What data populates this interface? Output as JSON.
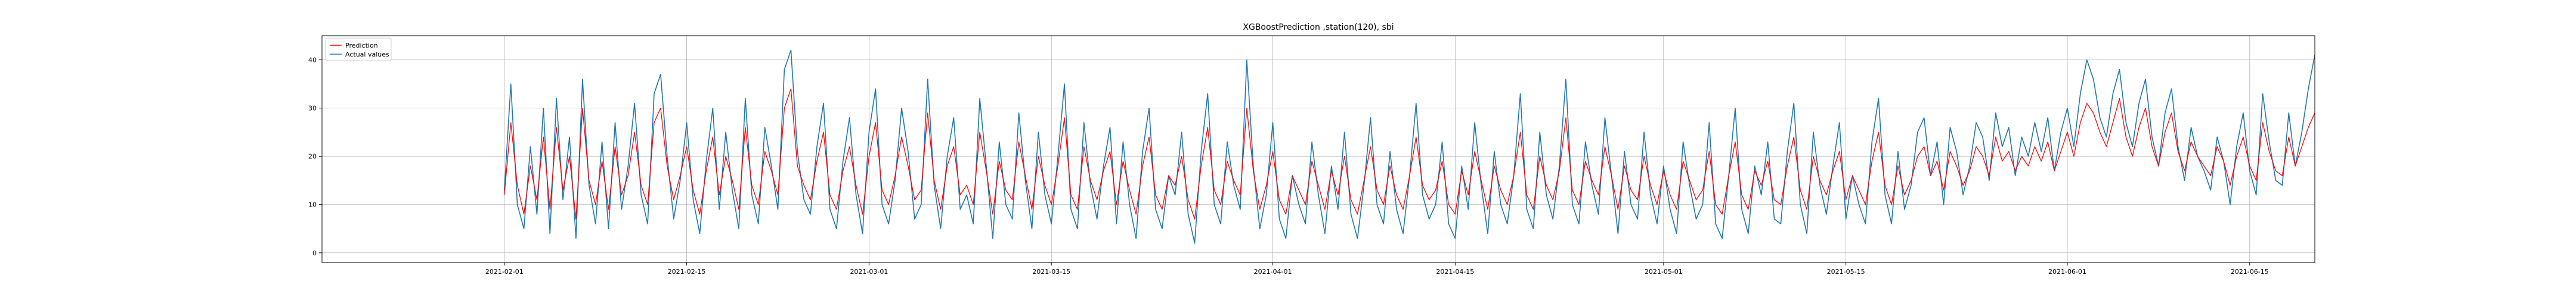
{
  "chart_data": {
    "type": "line",
    "title": "XGBoostPrediction ,station(120), sbi",
    "xlabel": "",
    "ylabel": "",
    "x_range": [
      "2021-01-18",
      "2021-06-20"
    ],
    "ylim": [
      -2,
      45
    ],
    "grid": true,
    "legend": "top-left",
    "x_ticks": [
      "2021-02-01",
      "2021-02-15",
      "2021-03-01",
      "2021-03-15",
      "2021-04-01",
      "2021-04-15",
      "2021-05-01",
      "2021-05-15",
      "2021-06-01",
      "2021-06-15"
    ],
    "y_ticks": [
      0,
      10,
      20,
      30,
      40
    ],
    "x_start": "2021-02-01",
    "x_step": "12h",
    "series": [
      {
        "name": "Prediction",
        "color": "#ff0000",
        "values": [
          12,
          27,
          14,
          8,
          18,
          11,
          24,
          9,
          26,
          13,
          20,
          7,
          30,
          15,
          10,
          19,
          9,
          22,
          12,
          16,
          25,
          14,
          10,
          27,
          30,
          18,
          11,
          16,
          22,
          13,
          8,
          17,
          24,
          12,
          20,
          15,
          9,
          26,
          14,
          10,
          21,
          17,
          12,
          30,
          34,
          18,
          14,
          11,
          19,
          25,
          12,
          9,
          17,
          22,
          14,
          8,
          20,
          27,
          13,
          10,
          16,
          24,
          18,
          11,
          13,
          29,
          15,
          9,
          18,
          22,
          12,
          14,
          10,
          25,
          17,
          8,
          19,
          13,
          11,
          23,
          16,
          9,
          20,
          14,
          10,
          18,
          28,
          12,
          9,
          22,
          15,
          11,
          17,
          21,
          10,
          19,
          13,
          8,
          18,
          24,
          12,
          9,
          16,
          14,
          20,
          11,
          7,
          18,
          26,
          13,
          10,
          19,
          15,
          12,
          30,
          17,
          9,
          14,
          21,
          11,
          8,
          16,
          13,
          10,
          19,
          14,
          9,
          17,
          12,
          20,
          11,
          8,
          15,
          22,
          13,
          10,
          18,
          12,
          9,
          16,
          24,
          14,
          11,
          13,
          19,
          10,
          8,
          17,
          12,
          21,
          15,
          9,
          18,
          13,
          10,
          16,
          25,
          12,
          9,
          20,
          14,
          11,
          17,
          28,
          13,
          10,
          19,
          15,
          12,
          22,
          16,
          9,
          18,
          13,
          11,
          20,
          14,
          10,
          17,
          12,
          9,
          19,
          15,
          11,
          13,
          21,
          10,
          8,
          16,
          23,
          12,
          9,
          17,
          14,
          19,
          11,
          10,
          18,
          24,
          13,
          9,
          20,
          15,
          12,
          17,
          21,
          11,
          16,
          13,
          10,
          19,
          25,
          14,
          10,
          18,
          12,
          15,
          20,
          22,
          16,
          19,
          13,
          21,
          18,
          14,
          17,
          22,
          20,
          16,
          24,
          19,
          21,
          17,
          20,
          18,
          22,
          19,
          23,
          17,
          21,
          25,
          20,
          27,
          31,
          29,
          25,
          22,
          27,
          32,
          24,
          20,
          26,
          30,
          22,
          18,
          25,
          29,
          21,
          17,
          23,
          20,
          18,
          16,
          22,
          19,
          14,
          20,
          24,
          18,
          15,
          27,
          21,
          17,
          16,
          24,
          18,
          22,
          26,
          29
        ]
      },
      {
        "name": "Actual values",
        "color": "#1f77b4",
        "values": [
          13,
          35,
          10,
          5,
          22,
          8,
          30,
          4,
          32,
          11,
          24,
          3,
          36,
          14,
          6,
          23,
          5,
          27,
          9,
          18,
          31,
          12,
          6,
          33,
          37,
          20,
          7,
          15,
          27,
          11,
          4,
          19,
          30,
          9,
          25,
          13,
          5,
          32,
          12,
          6,
          26,
          18,
          9,
          38,
          42,
          21,
          11,
          8,
          22,
          31,
          9,
          5,
          19,
          28,
          12,
          4,
          25,
          34,
          10,
          6,
          15,
          30,
          21,
          7,
          10,
          36,
          14,
          5,
          20,
          28,
          9,
          12,
          6,
          32,
          18,
          3,
          23,
          10,
          7,
          29,
          15,
          5,
          25,
          12,
          6,
          20,
          35,
          9,
          5,
          27,
          14,
          7,
          18,
          26,
          6,
          23,
          10,
          3,
          21,
          30,
          9,
          5,
          16,
          12,
          25,
          8,
          2,
          21,
          33,
          10,
          6,
          23,
          14,
          9,
          40,
          18,
          5,
          12,
          27,
          7,
          3,
          16,
          10,
          6,
          23,
          12,
          4,
          18,
          9,
          25,
          8,
          3,
          14,
          28,
          10,
          6,
          21,
          9,
          4,
          16,
          31,
          12,
          7,
          10,
          23,
          6,
          3,
          18,
          9,
          27,
          14,
          4,
          21,
          10,
          6,
          16,
          33,
          9,
          5,
          25,
          12,
          7,
          18,
          36,
          10,
          6,
          23,
          14,
          8,
          28,
          16,
          4,
          21,
          10,
          7,
          25,
          12,
          6,
          18,
          9,
          4,
          23,
          14,
          7,
          10,
          27,
          6,
          3,
          16,
          30,
          9,
          4,
          18,
          12,
          23,
          7,
          6,
          21,
          31,
          10,
          4,
          25,
          14,
          8,
          18,
          27,
          7,
          16,
          10,
          6,
          23,
          32,
          12,
          6,
          21,
          9,
          14,
          25,
          28,
          16,
          23,
          10,
          26,
          21,
          12,
          18,
          27,
          24,
          15,
          29,
          22,
          26,
          16,
          24,
          20,
          27,
          21,
          28,
          17,
          25,
          30,
          22,
          33,
          40,
          36,
          28,
          24,
          33,
          38,
          27,
          22,
          31,
          36,
          24,
          18,
          29,
          34,
          22,
          15,
          26,
          20,
          17,
          13,
          24,
          19,
          10,
          22,
          29,
          17,
          12,
          33,
          23,
          15,
          14,
          29,
          18,
          25,
          34,
          41
        ]
      }
    ]
  }
}
